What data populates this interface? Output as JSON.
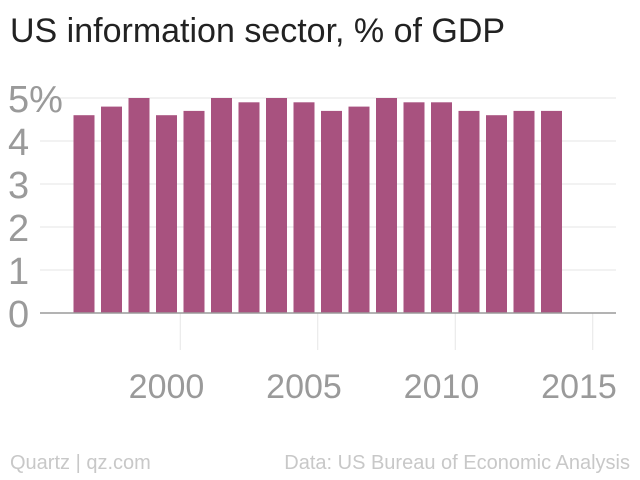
{
  "title": "US information sector, % of GDP",
  "footer": {
    "credit": "Quartz | qz.com",
    "source": "Data: US Bureau of Economic Analysis"
  },
  "colors": {
    "bar": "#a8527f",
    "axis_text": "#9a9a9a",
    "grid": "#e6e6e6",
    "baseline": "#9a9a9a"
  },
  "chart_data": {
    "type": "bar",
    "title": "US information sector, % of GDP",
    "xlabel": "",
    "ylabel": "",
    "categories": [
      1997,
      1998,
      1999,
      2000,
      2001,
      2002,
      2003,
      2004,
      2005,
      2006,
      2007,
      2008,
      2009,
      2010,
      2011,
      2012,
      2013,
      2014
    ],
    "values": [
      4.6,
      4.8,
      5.0,
      4.6,
      4.7,
      5.0,
      4.9,
      5.0,
      4.9,
      4.7,
      4.8,
      5.0,
      4.9,
      4.9,
      4.7,
      4.6,
      4.7,
      4.7
    ],
    "ylim": [
      0,
      5
    ],
    "yticks": [
      0,
      1,
      2,
      3,
      4,
      5
    ],
    "ytick_labels": [
      "0",
      "1",
      "2",
      "3",
      "4",
      "5%"
    ],
    "xticks": [
      2000,
      2005,
      2010,
      2015
    ],
    "xtick_labels": [
      "2000",
      "2005",
      "2010",
      "2015"
    ],
    "grid": true
  }
}
